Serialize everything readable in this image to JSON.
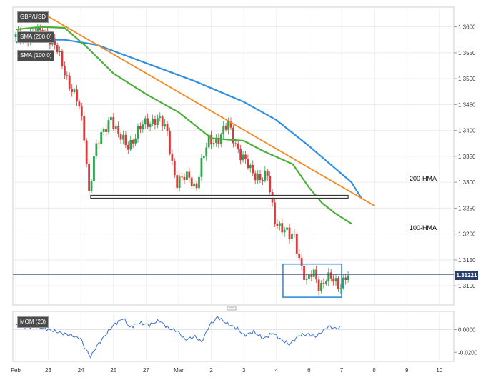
{
  "labels": {
    "symbol": "GBP/USD",
    "sma200": "SMA (200,0)",
    "sma100": "SMA (100,0)",
    "mom": "MOM (20)",
    "hma200": "200-HMA",
    "hma100": "100-HMA",
    "price": "1.31221"
  },
  "colors": {
    "bull": "#2ea44f",
    "bear": "#d83b3b",
    "hma200": "#2f8fe0",
    "hma100": "#4caf3a",
    "trend": "#f08a24",
    "support": "#333333",
    "box": "#2f8fe0",
    "priceLine": "#2c3e6e",
    "mom": "#3b6fd1"
  },
  "chart_data": [
    {
      "type": "candlestick",
      "title": "GBP/USD",
      "x_ticks": [
        "Feb",
        "23",
        "24",
        "25",
        "27",
        "Mar",
        "2",
        "3",
        "4",
        "6",
        "7",
        "8",
        "9",
        "10"
      ],
      "y_ticks": [
        "1.3600",
        "1.3550",
        "1.3500",
        "1.3450",
        "1.3400",
        "1.3350",
        "1.3300",
        "1.3250",
        "1.3200",
        "1.3150",
        "1.3100"
      ],
      "ylim": [
        1.3063,
        1.3638
      ],
      "last_price": 1.31221,
      "series": [
        {
          "name": "200-HMA",
          "x": [
            0,
            0.8,
            1.5,
            2.5,
            4,
            5.5,
            7,
            8,
            9,
            10.3,
            10.6
          ],
          "y": [
            1.357,
            1.3575,
            1.3575,
            1.3565,
            1.353,
            1.3495,
            1.3455,
            1.342,
            1.337,
            1.33,
            1.327
          ]
        },
        {
          "name": "100-HMA",
          "x": [
            0,
            0.8,
            1.5,
            2.2,
            3,
            4,
            5,
            6,
            7,
            7.6,
            8.5,
            9,
            9.4,
            9.8,
            10.3
          ],
          "y": [
            1.3595,
            1.36,
            1.3598,
            1.356,
            1.351,
            1.347,
            1.3435,
            1.3385,
            1.338,
            1.336,
            1.3335,
            1.329,
            1.326,
            1.324,
            1.322
          ]
        }
      ],
      "trend_line": {
        "x": [
          1.0,
          11.0
        ],
        "y": [
          1.362,
          1.3255
        ]
      },
      "support_line": {
        "x": [
          2.3,
          10.2
        ],
        "y": [
          1.3272,
          1.3272
        ]
      },
      "range_box": {
        "x": [
          8.2,
          10.0
        ],
        "y": [
          1.3078,
          1.3142
        ]
      },
      "candles_path": {
        "x": [
          0,
          0.6,
          1.0,
          1.3,
          1.6,
          2.0,
          2.2,
          2.32,
          2.5,
          2.8,
          3.0,
          3.2,
          3.5,
          3.8,
          4.0,
          4.4,
          4.7,
          5.0,
          5.4,
          5.6,
          5.75,
          6.0,
          6.3,
          6.6,
          7.0,
          7.3,
          7.6,
          7.8,
          8.0,
          8.3,
          8.5,
          8.6,
          8.8,
          9.0,
          9.2,
          9.4,
          9.6,
          9.8,
          10.0,
          10.2
        ],
        "y": [
          1.358,
          1.3585,
          1.359,
          1.356,
          1.351,
          1.345,
          1.338,
          1.328,
          1.336,
          1.34,
          1.343,
          1.339,
          1.337,
          1.3395,
          1.341,
          1.3425,
          1.34,
          1.33,
          1.331,
          1.329,
          1.333,
          1.338,
          1.3385,
          1.341,
          1.335,
          1.332,
          1.331,
          1.331,
          1.323,
          1.321,
          1.319,
          1.32,
          1.315,
          1.3105,
          1.3125,
          1.31,
          1.3115,
          1.311,
          1.31,
          1.312
        ]
      }
    },
    {
      "type": "line",
      "title": "MOM (20)",
      "y_ticks": [
        "0.0000",
        "-0.0200"
      ],
      "ylim": [
        -0.028,
        0.016
      ],
      "series": [
        {
          "name": "MOM (20)",
          "x": [
            0,
            0.3,
            0.6,
            1.0,
            1.4,
            1.7,
            2.0,
            2.1,
            2.3,
            2.5,
            2.8,
            3.0,
            3.3,
            3.5,
            3.8,
            4.1,
            4.4,
            4.7,
            4.95,
            5.2,
            5.5,
            5.7,
            5.95,
            6.2,
            6.5,
            6.8,
            7.0,
            7.3,
            7.6,
            7.9,
            8.1,
            8.4,
            8.7,
            9.0,
            9.2,
            9.4,
            9.6,
            9.8,
            10.0
          ],
          "y": [
            0.004,
            0.002,
            0.003,
            0.0,
            -0.003,
            -0.005,
            -0.008,
            -0.015,
            -0.024,
            -0.014,
            -0.003,
            0.004,
            0.01,
            0.002,
            0.006,
            0.004,
            0.008,
            0.001,
            -0.001,
            -0.009,
            -0.006,
            -0.011,
            0.004,
            0.011,
            0.005,
            0.001,
            -0.005,
            -0.002,
            -0.008,
            -0.003,
            -0.008,
            -0.013,
            -0.005,
            -0.004,
            -0.006,
            -0.002,
            0.003,
            0.001,
            0.002
          ]
        }
      ]
    }
  ]
}
